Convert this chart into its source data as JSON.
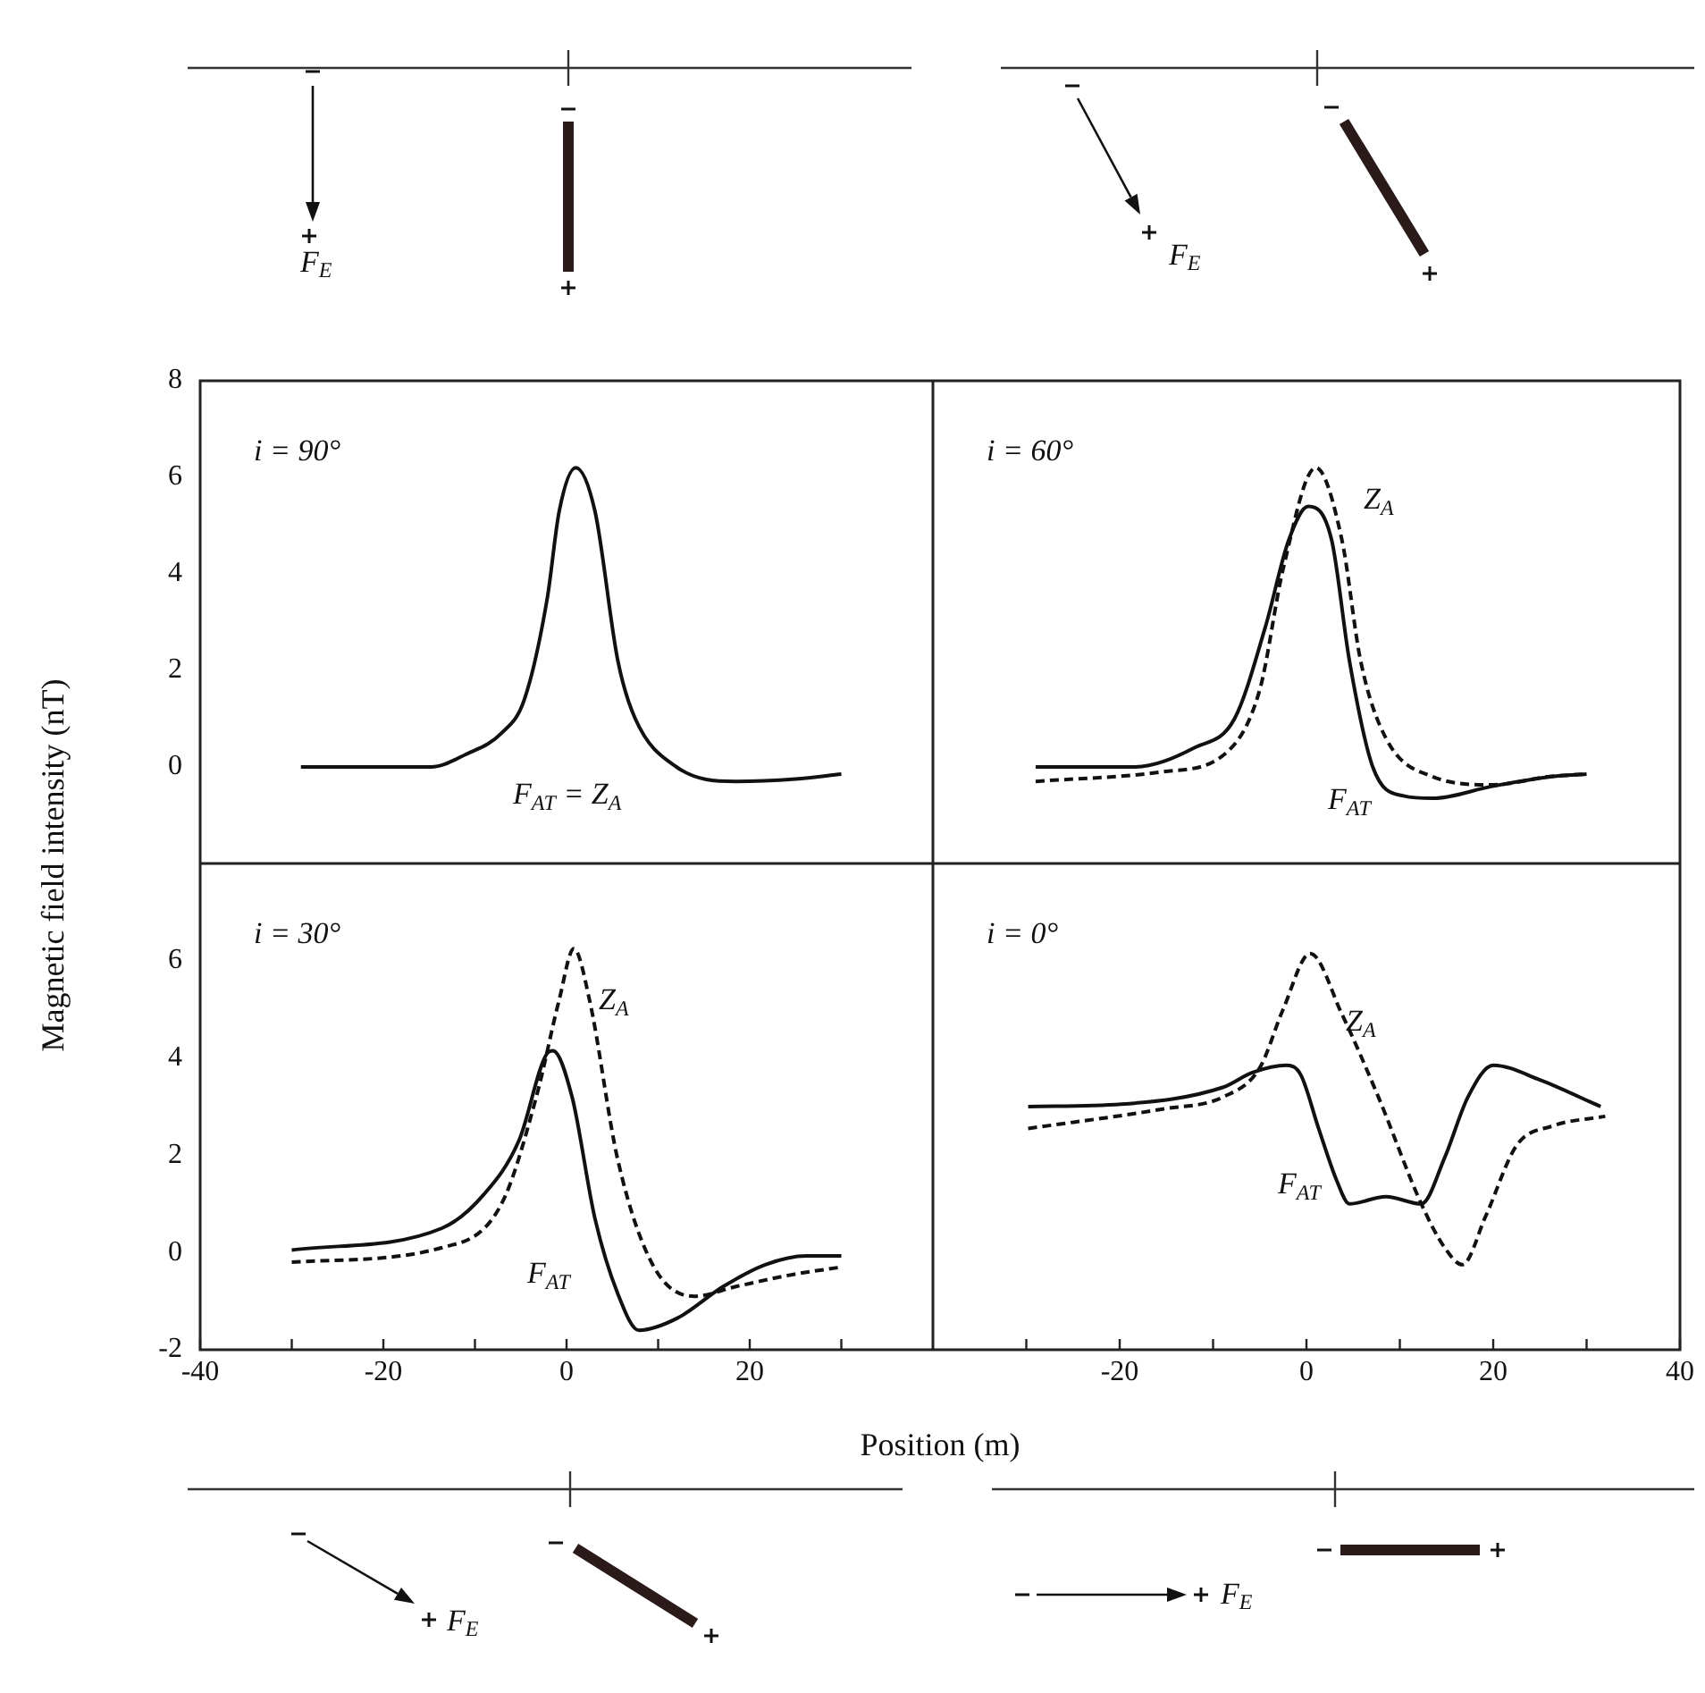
{
  "chart_data": [
    {
      "type": "line",
      "ylabel": "Magnetic field intensity (nT)",
      "xlim": [
        -40,
        40
      ],
      "ylim": [
        -2,
        8
      ],
      "yticks": [
        0,
        2,
        4,
        6,
        8
      ],
      "tick_labels": "y",
      "annotations": [
        "i = 90°",
        "F$_{E}$"
      ],
      "series": [
        {
          "name": "F$_{AT}$ = Z$_{A}$",
          "color": "#111111",
          "line_style": "solid",
          "x": [
            -29,
            -14.8,
            -11,
            -7.1,
            -4.6,
            -2.1,
            -0.8,
            1,
            3.1,
            5.6,
            7.5,
            12,
            18.5,
            25,
            30
          ],
          "values": [
            0,
            0,
            0.26,
            0.7,
            1.4,
            3.5,
            5.3,
            6.2,
            5.3,
            2.2,
            1,
            0,
            -0.3,
            -0.25,
            -0.15
          ]
        }
      ]
    },
    {
      "type": "line",
      "xlim": [
        -40,
        40
      ],
      "ylim": [
        -2,
        8
      ],
      "tick_labels": false,
      "annotations": [
        "i = 60°",
        "F$_{E}$"
      ],
      "series": [
        {
          "name": "F$_{AT}$",
          "color": "#111111",
          "line_style": "solid",
          "x": [
            -29,
            -18.5,
            -12,
            -7.7,
            -4.4,
            -1.9,
            0.2,
            2.7,
            4.6,
            7.1,
            10.4,
            13.5,
            19.9,
            26.3,
            30
          ],
          "values": [
            0,
            0,
            0.4,
            1,
            2.9,
            4.7,
            5.4,
            4.7,
            2.2,
            0,
            -0.6,
            -0.65,
            -0.4,
            -0.2,
            -0.15
          ]
        },
        {
          "name": "Z$_{A}$",
          "color": "#111111",
          "line_style": "dashed",
          "x": [
            -29,
            -15.4,
            -8.8,
            -5,
            -2.5,
            1,
            3.8,
            5.8,
            8.5,
            13.5,
            20,
            26,
            30
          ],
          "values": [
            -0.3,
            -0.1,
            0.26,
            1.6,
            4.1,
            6.2,
            4.7,
            2.2,
            0.6,
            -0.2,
            -0.37,
            -0.2,
            -0.15
          ]
        }
      ]
    },
    {
      "type": "line",
      "xlabel": "Position (m)",
      "xlim": [
        -40,
        40
      ],
      "ylim": [
        -2,
        8
      ],
      "xticks": [
        -40,
        {
          "value": -30,
          "label": null
        },
        -20,
        {
          "value": -10,
          "label": null
        },
        0,
        {
          "value": 10,
          "label": null
        },
        20,
        {
          "value": 30,
          "label": null
        }
      ],
      "yticks": [
        -2,
        0,
        2,
        4,
        6
      ],
      "annotations": [
        "i = 30°",
        "F$_{E}$"
      ],
      "series": [
        {
          "name": "F$_{AT}$",
          "color": "#111111",
          "line_style": "solid",
          "x": [
            -30,
            -13.6,
            -9,
            -5.2,
            -2.1,
            -1.5,
            0.6,
            3.1,
            5.6,
            7.9,
            12.1,
            17.1,
            21.7,
            26.2,
            30
          ],
          "values": [
            0.05,
            0.5,
            1.2,
            2.3,
            4.1,
            4.15,
            3.2,
            0.7,
            -0.85,
            -1.6,
            -1.35,
            -0.7,
            -0.25,
            -0.07,
            -0.07
          ]
        },
        {
          "name": "Z$_{A}$",
          "color": "#111111",
          "line_style": "dashed",
          "x": [
            -30,
            -13.6,
            -7.1,
            -3.3,
            -0.8,
            0.8,
            2.5,
            5.6,
            9.4,
            14,
            18.5,
            24.8,
            30
          ],
          "values": [
            -0.2,
            0.1,
            1,
            3.2,
            5.2,
            6.25,
            5.2,
            1.9,
            -0.25,
            -0.9,
            -0.7,
            -0.45,
            -0.3
          ]
        }
      ]
    },
    {
      "type": "line",
      "xlim": [
        -40,
        40
      ],
      "ylim": [
        -2,
        8
      ],
      "xticks": [
        {
          "value": -30,
          "label": null
        },
        -20,
        {
          "value": -10,
          "label": null
        },
        0,
        {
          "value": 10,
          "label": null
        },
        20,
        {
          "value": 30,
          "label": null
        },
        40
      ],
      "tick_labels": "x",
      "annotations": [
        "i = 0°",
        "F$_{E}$"
      ],
      "series": [
        {
          "name": "F$_{AT}$",
          "color": "#111111",
          "line_style": "solid",
          "x": [
            -29.8,
            -19.8,
            -8.9,
            -5.8,
            -2.1,
            -0.6,
            1.3,
            3.3,
            4.6,
            8.5,
            12.3,
            14.8,
            17.3,
            20,
            25,
            31.5
          ],
          "values": [
            3,
            3.05,
            3.4,
            3.7,
            3.85,
            3.65,
            2.55,
            1.45,
            1,
            1.15,
            1,
            1.95,
            3.2,
            3.85,
            3.55,
            3
          ]
        },
        {
          "name": "Z$_{A}$",
          "color": "#111111",
          "line_style": "dashed",
          "x": [
            -29.8,
            -15.4,
            -8.9,
            -5,
            -2.5,
            0.4,
            3.8,
            7.7,
            12.3,
            14.8,
            16.7,
            19.2,
            22.5,
            26.3,
            32
          ],
          "values": [
            2.55,
            2.95,
            3.2,
            3.8,
            5,
            6.15,
            4.9,
            3.2,
            1,
            0.1,
            -0.25,
            0.75,
            2.2,
            2.6,
            2.8
          ]
        }
      ]
    }
  ]
}
